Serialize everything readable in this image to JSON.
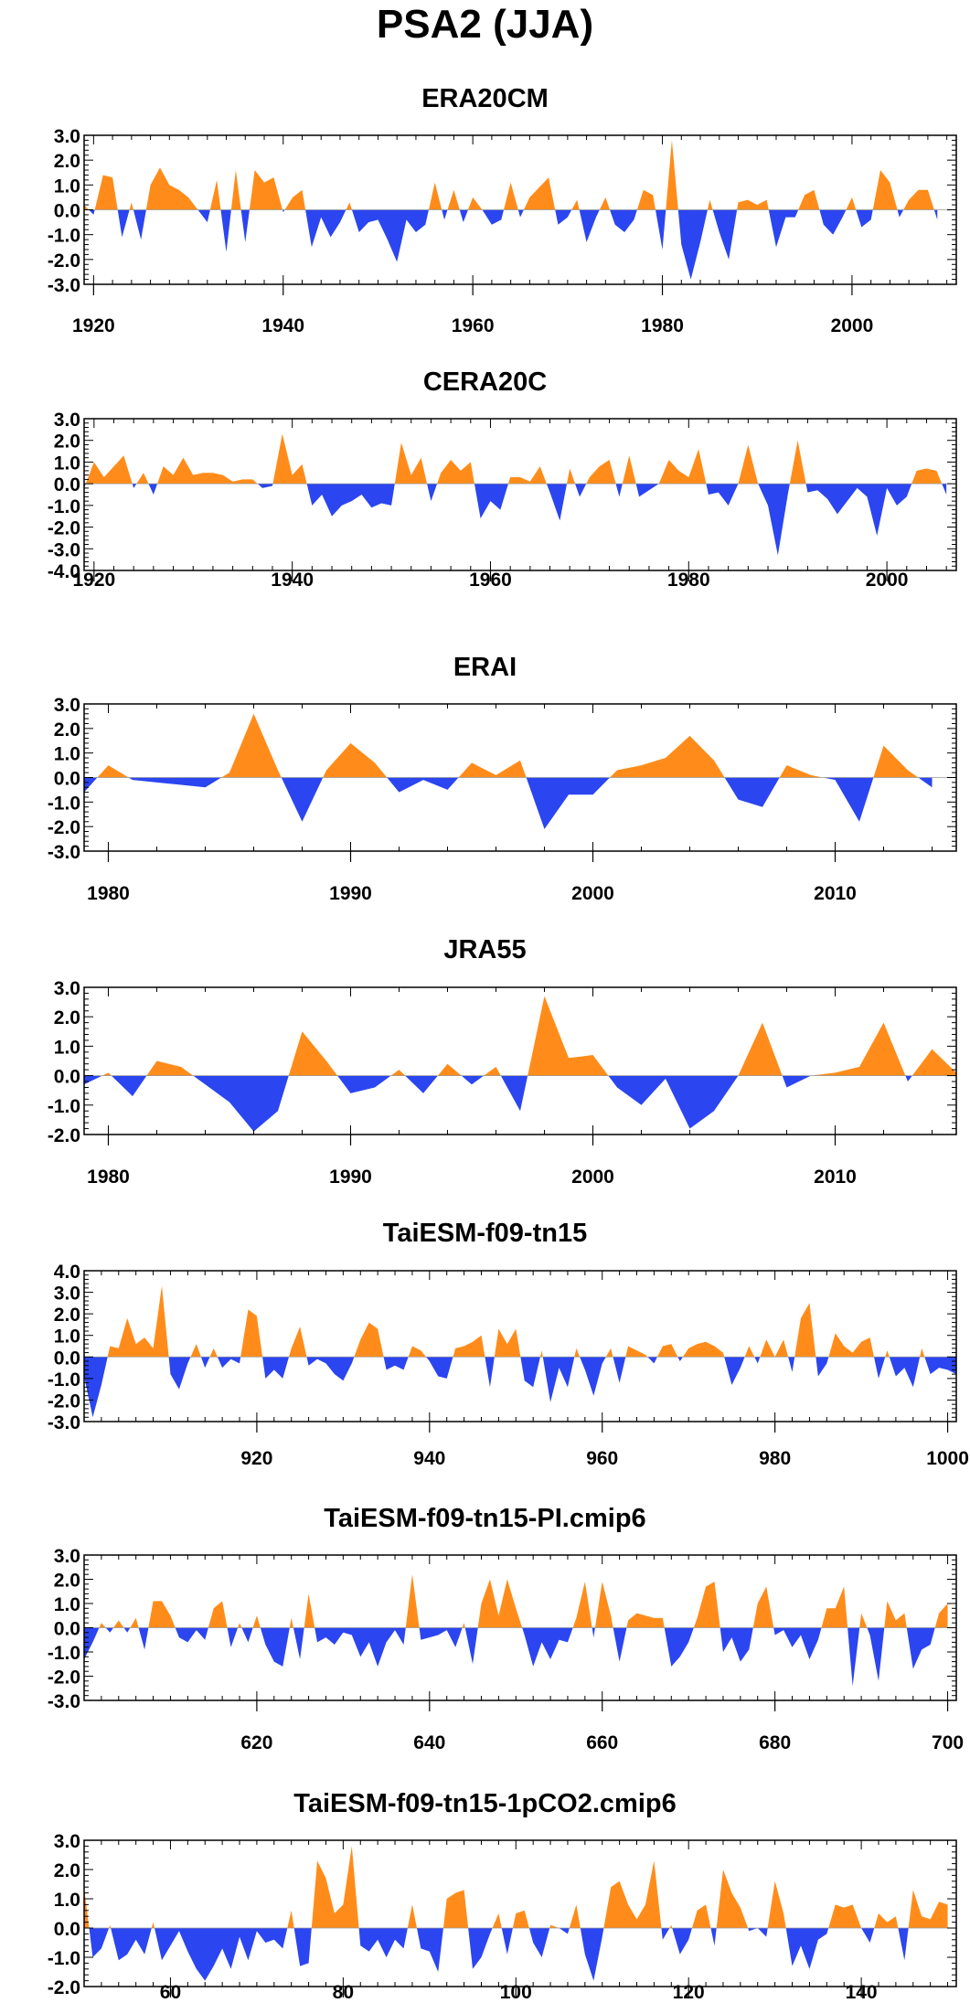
{
  "title": "PSA2 (JJA)",
  "colors": {
    "positive": "#FF8C1A",
    "negative": "#2B45F0"
  },
  "chart_data": [
    {
      "type": "area",
      "title": "ERA20CM",
      "xlim": [
        1919,
        2011
      ],
      "ylim": [
        -3.0,
        3.0
      ],
      "xticks": [
        1920,
        1940,
        1960,
        1980,
        2000
      ],
      "yticks": [
        3.0,
        2.0,
        1.0,
        0.0,
        -1.0,
        -2.0,
        -3.0
      ],
      "ytick_labels": [
        "3.0",
        "2.0",
        "1.0",
        "0.0",
        "-1.0",
        "-2.0",
        "-3.0"
      ],
      "x_start": 1919,
      "values": [
        0.2,
        -0.2,
        1.4,
        1.3,
        -1.1,
        0.3,
        -1.2,
        1.0,
        1.7,
        1.0,
        0.8,
        0.5,
        0.0,
        -0.5,
        1.2,
        -1.7,
        1.6,
        -1.3,
        1.6,
        1.1,
        1.3,
        -0.1,
        0.5,
        0.8,
        -1.5,
        -0.3,
        -1.1,
        -0.5,
        0.3,
        -0.9,
        -0.5,
        -0.4,
        -1.2,
        -2.1,
        -0.4,
        -0.9,
        -0.6,
        1.1,
        -0.4,
        0.8,
        -0.5,
        0.5,
        0.0,
        -0.6,
        -0.4,
        1.1,
        -0.3,
        0.5,
        0.9,
        1.3,
        -0.6,
        -0.3,
        0.4,
        -1.3,
        -0.3,
        0.5,
        -0.6,
        -0.9,
        -0.4,
        0.8,
        0.6,
        -1.6,
        2.8,
        -1.4,
        -2.8,
        -1.3,
        0.4,
        -0.9,
        -2.0,
        0.3,
        0.4,
        0.2,
        0.4,
        -1.5,
        -0.3,
        -0.3,
        0.6,
        0.8,
        -0.6,
        -1.0,
        -0.3,
        0.5,
        -0.7,
        -0.4,
        1.6,
        1.1,
        -0.3,
        0.4,
        0.8,
        0.8,
        -0.4
      ]
    },
    {
      "type": "area",
      "title": "CERA20C",
      "xlim": [
        1919,
        2007
      ],
      "ylim": [
        -4.0,
        3.0
      ],
      "xticks": [
        1920,
        1940,
        1960,
        1980,
        2000
      ],
      "yticks": [
        3.0,
        2.0,
        1.0,
        0.0,
        -1.0,
        -2.0,
        -3.0,
        -4.0
      ],
      "ytick_labels": [
        "3.0",
        "2.0",
        "1.0",
        "0.0",
        "-1.0",
        "-2.0",
        "-3.0",
        "-4.0"
      ],
      "x_start": 1919,
      "values": [
        -0.2,
        1.0,
        0.3,
        0.8,
        1.3,
        -0.2,
        0.5,
        -0.5,
        0.8,
        0.4,
        1.2,
        0.4,
        0.5,
        0.5,
        0.4,
        0.1,
        0.2,
        0.2,
        -0.2,
        -0.1,
        2.3,
        0.4,
        0.9,
        -1.0,
        -0.5,
        -1.5,
        -1.0,
        -0.8,
        -0.5,
        -1.1,
        -0.9,
        -1.0,
        1.9,
        0.4,
        1.2,
        -0.8,
        0.5,
        1.1,
        0.6,
        1.0,
        -1.6,
        -0.8,
        -1.2,
        0.3,
        0.3,
        0.1,
        0.8,
        -0.4,
        -1.7,
        0.7,
        -0.6,
        0.3,
        0.8,
        1.1,
        -0.6,
        1.3,
        -0.6,
        -0.3,
        0.0,
        1.1,
        0.6,
        0.3,
        1.6,
        -0.5,
        -0.4,
        -1.0,
        0.0,
        1.8,
        0.0,
        -1.0,
        -3.3,
        -0.5,
        2.0,
        -0.4,
        -0.3,
        -0.7,
        -1.4,
        -0.8,
        -0.2,
        -0.6,
        -2.4,
        -0.2,
        -1.0,
        -0.6,
        0.6,
        0.7,
        0.6,
        -0.5
      ]
    },
    {
      "type": "area",
      "title": "ERAI",
      "xlim": [
        1979,
        2015
      ],
      "ylim": [
        -3.0,
        3.0
      ],
      "xticks": [
        1980,
        1990,
        2000,
        2010
      ],
      "yticks": [
        3.0,
        2.0,
        1.0,
        0.0,
        -1.0,
        -2.0,
        -3.0
      ],
      "ytick_labels": [
        "3.0",
        "2.0",
        "1.0",
        "0.0",
        "-1.0",
        "-2.0",
        "-3.0"
      ],
      "x_start": 1979,
      "values": [
        -0.6,
        0.5,
        -0.1,
        -0.2,
        -0.3,
        -0.4,
        0.2,
        2.6,
        0.3,
        -1.8,
        0.3,
        1.4,
        0.6,
        -0.6,
        -0.1,
        -0.5,
        0.6,
        0.1,
        0.7,
        -2.1,
        -0.7,
        -0.7,
        0.3,
        0.5,
        0.8,
        1.7,
        0.7,
        -0.9,
        -1.2,
        0.5,
        0.1,
        -0.1,
        -1.8,
        1.3,
        0.3,
        -0.4
      ]
    },
    {
      "type": "area",
      "title": "JRA55",
      "xlim": [
        1979,
        2015
      ],
      "ylim": [
        -2.0,
        3.0
      ],
      "xticks": [
        1980,
        1990,
        2000,
        2010
      ],
      "yticks": [
        3.0,
        2.0,
        1.0,
        0.0,
        -1.0,
        -2.0
      ],
      "ytick_labels": [
        "3.0",
        "2.0",
        "1.0",
        "0.0",
        "-1.0",
        "-2.0"
      ],
      "x_start": 1979,
      "values": [
        -0.3,
        0.1,
        -0.7,
        0.5,
        0.3,
        -0.3,
        -0.9,
        -1.9,
        -1.2,
        1.5,
        0.5,
        -0.6,
        -0.4,
        0.2,
        -0.6,
        0.4,
        -0.3,
        0.3,
        -1.2,
        2.7,
        0.6,
        0.7,
        -0.4,
        -1.0,
        -0.1,
        -1.8,
        -1.2,
        0.0,
        1.8,
        -0.4,
        0.0,
        0.1,
        0.3,
        1.8,
        -0.2,
        0.9,
        0.1
      ]
    },
    {
      "type": "area",
      "title": "TaiESM-f09-tn15",
      "xlim": [
        900,
        1001
      ],
      "ylim": [
        -3.0,
        4.0
      ],
      "xticks": [
        920,
        940,
        960,
        980,
        1000
      ],
      "yticks": [
        4.0,
        3.0,
        2.0,
        1.0,
        0.0,
        -1.0,
        -2.0,
        -3.0
      ],
      "ytick_labels": [
        "4.0",
        "3.0",
        "2.0",
        "1.0",
        "0.0",
        "-1.0",
        "-2.0",
        "-3.0"
      ],
      "x_start": 900,
      "values": [
        -0.9,
        -2.8,
        -1.3,
        0.5,
        0.4,
        1.8,
        0.6,
        0.9,
        0.4,
        3.3,
        -0.8,
        -1.5,
        -0.3,
        0.6,
        -0.5,
        0.4,
        -0.5,
        -0.1,
        -0.3,
        2.2,
        1.9,
        -1.0,
        -0.6,
        -1.0,
        0.4,
        1.4,
        -0.4,
        -0.1,
        -0.3,
        -0.8,
        -1.1,
        -0.3,
        0.8,
        1.6,
        1.3,
        -0.6,
        -0.4,
        -0.6,
        0.5,
        0.3,
        -0.2,
        -0.9,
        -1.0,
        0.4,
        0.5,
        0.7,
        1.0,
        -1.4,
        1.3,
        0.6,
        1.3,
        -1.1,
        -1.4,
        0.3,
        -2.1,
        -0.5,
        -1.4,
        0.4,
        -0.6,
        -1.8,
        -0.3,
        0.4,
        -1.2,
        0.5,
        0.3,
        0.1,
        -0.3,
        0.5,
        0.6,
        -0.2,
        0.4,
        0.6,
        0.7,
        0.5,
        0.2,
        -1.3,
        -0.5,
        0.5,
        -0.3,
        0.8,
        0.0,
        0.8,
        -0.7,
        1.8,
        2.5,
        -0.9,
        -0.3,
        1.1,
        0.5,
        0.2,
        0.7,
        0.9,
        -1.0,
        0.3,
        -0.9,
        -0.5,
        -1.4,
        0.4,
        -0.8,
        -0.5,
        -0.6,
        -0.8
      ]
    },
    {
      "type": "area",
      "title": "TaiESM-f09-tn15-PI.cmip6",
      "xlim": [
        600,
        701
      ],
      "ylim": [
        -3.0,
        3.0
      ],
      "xticks": [
        620,
        640,
        660,
        680,
        700
      ],
      "yticks": [
        3.0,
        2.0,
        1.0,
        0.0,
        -1.0,
        -2.0,
        -3.0
      ],
      "ytick_labels": [
        "3.0",
        "2.0",
        "1.0",
        "0.0",
        "-1.0",
        "-2.0",
        "-3.0"
      ],
      "x_start": 600,
      "values": [
        -1.3,
        -0.6,
        0.2,
        -0.2,
        0.3,
        -0.2,
        0.4,
        -0.9,
        1.1,
        1.1,
        0.5,
        -0.4,
        -0.6,
        -0.1,
        -0.5,
        0.8,
        1.1,
        -0.8,
        0.2,
        -0.6,
        0.5,
        -0.7,
        -1.4,
        -1.6,
        0.4,
        -1.3,
        1.4,
        -0.6,
        -0.4,
        -0.7,
        -0.2,
        -0.3,
        -1.2,
        -0.6,
        -1.6,
        -0.6,
        -0.1,
        -0.7,
        2.2,
        -0.5,
        -0.4,
        -0.3,
        -0.1,
        -0.8,
        0.2,
        -1.5,
        1.0,
        2.0,
        0.5,
        2.0,
        0.8,
        -0.3,
        -1.6,
        -0.6,
        -1.3,
        -0.5,
        -0.6,
        0.4,
        1.9,
        -0.4,
        1.9,
        0.5,
        -1.4,
        0.3,
        0.6,
        0.5,
        0.4,
        0.4,
        -1.6,
        -1.2,
        -0.6,
        0.4,
        1.7,
        1.9,
        -1.0,
        -0.4,
        -1.4,
        -0.9,
        1.0,
        1.7,
        -0.3,
        -0.1,
        -0.8,
        -0.3,
        -1.3,
        -0.5,
        0.8,
        0.8,
        1.7,
        -2.4,
        0.6,
        -0.3,
        -2.2,
        1.1,
        0.3,
        0.6,
        -1.7,
        -0.9,
        -0.7,
        0.6,
        1.0
      ]
    },
    {
      "type": "area",
      "title": "TaiESM-f09-tn15-1pCO2.cmip6",
      "xlim": [
        50,
        151
      ],
      "ylim": [
        -2.0,
        3.0
      ],
      "xticks": [
        60,
        80,
        100,
        120,
        140
      ],
      "yticks": [
        3.0,
        2.0,
        1.0,
        0.0,
        -1.0,
        -2.0
      ],
      "ytick_labels": [
        "3.0",
        "2.0",
        "1.0",
        "0.0",
        "-1.0",
        "-2.0"
      ],
      "x_start": 50,
      "values": [
        1.4,
        -1.0,
        -0.7,
        0.1,
        -1.1,
        -0.9,
        -0.4,
        -0.9,
        0.2,
        -1.1,
        -0.6,
        -0.1,
        -0.8,
        -1.4,
        -1.8,
        -1.3,
        -0.7,
        -1.4,
        -0.3,
        -1.1,
        -0.1,
        -0.5,
        -0.4,
        -0.7,
        0.6,
        -1.3,
        -1.2,
        2.3,
        1.7,
        0.5,
        0.8,
        2.8,
        -0.6,
        -0.8,
        -0.4,
        -1.0,
        -0.4,
        -0.7,
        0.8,
        -0.7,
        -0.8,
        -1.5,
        1.0,
        1.2,
        1.3,
        -1.4,
        -1.0,
        -0.2,
        0.5,
        -0.9,
        0.5,
        0.6,
        -0.5,
        -1.0,
        0.1,
        0.0,
        -0.2,
        0.8,
        -0.9,
        -1.8,
        -0.3,
        1.4,
        1.6,
        0.8,
        0.3,
        0.8,
        2.3,
        -0.4,
        0.1,
        -0.9,
        -0.4,
        0.6,
        0.8,
        -0.6,
        2.0,
        1.2,
        0.7,
        -0.1,
        0.0,
        -0.3,
        1.6,
        0.5,
        -1.3,
        -0.6,
        -1.4,
        -0.4,
        -0.2,
        0.8,
        0.7,
        0.8,
        0.0,
        -0.5,
        0.5,
        0.2,
        0.4,
        -1.1,
        1.3,
        0.4,
        0.3,
        0.9,
        0.8
      ]
    }
  ]
}
